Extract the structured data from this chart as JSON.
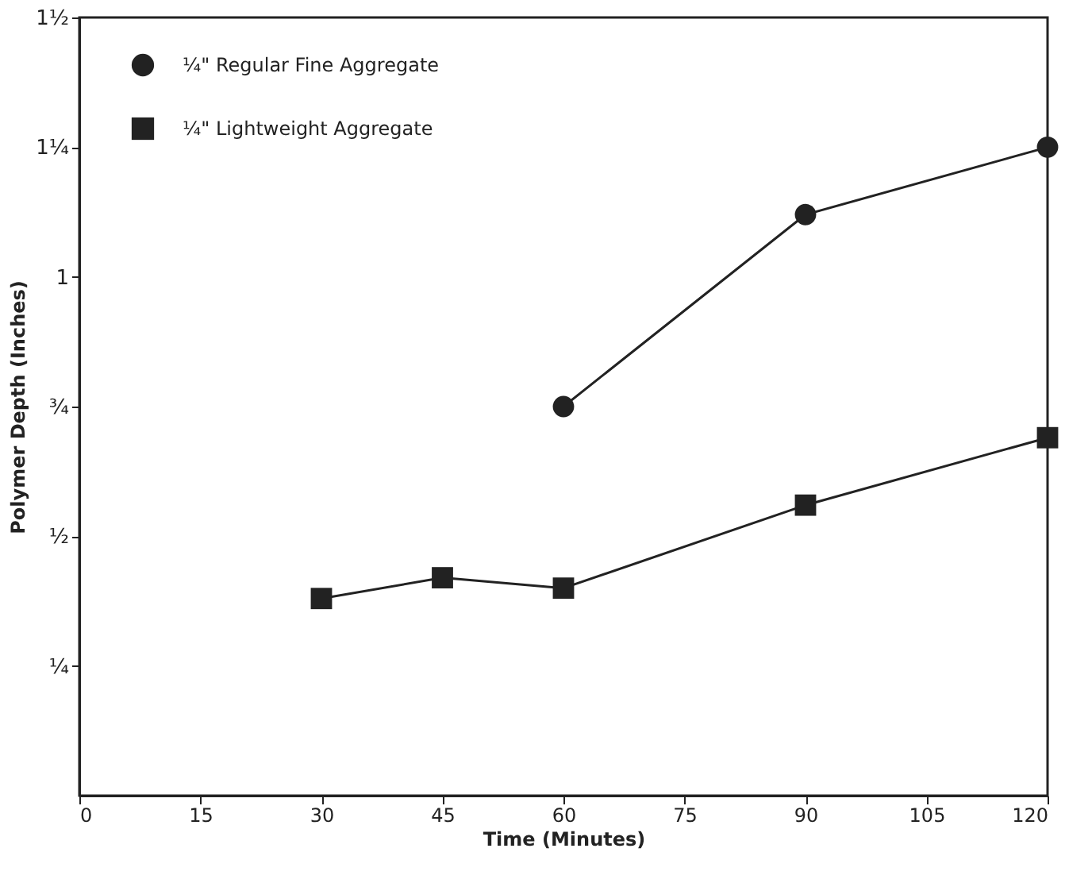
{
  "chart_data": {
    "type": "line",
    "xlabel": "Time   (Minutes)",
    "ylabel": "Polymer Depth  (Inches)",
    "xlim": [
      0,
      120
    ],
    "xticks": [
      0,
      15,
      30,
      45,
      60,
      75,
      90,
      105,
      120
    ],
    "ylim": [
      0,
      1.5
    ],
    "yticks": [
      {
        "value": 0.25,
        "label": "¼"
      },
      {
        "value": 0.5,
        "label": "½"
      },
      {
        "value": 0.75,
        "label": "¾"
      },
      {
        "value": 1,
        "label": "1"
      },
      {
        "value": 1.25,
        "label": "1¼"
      },
      {
        "value": 1.5,
        "label": "1½"
      }
    ],
    "grid": false,
    "legend": "top left",
    "line_style": "solid",
    "series": [
      {
        "name": "¼\" Regular Fine Aggregate",
        "color": "#222222",
        "marker": "circle",
        "x": [
          60,
          90,
          120
        ],
        "values": [
          0.75,
          1.12,
          1.25
        ]
      },
      {
        "name": "¼\" Lightweight Aggregate",
        "color": "#222222",
        "marker": "square",
        "x": [
          30,
          45,
          60,
          90,
          120
        ],
        "values": [
          0.38,
          0.42,
          0.4,
          0.56,
          0.69
        ]
      }
    ]
  }
}
